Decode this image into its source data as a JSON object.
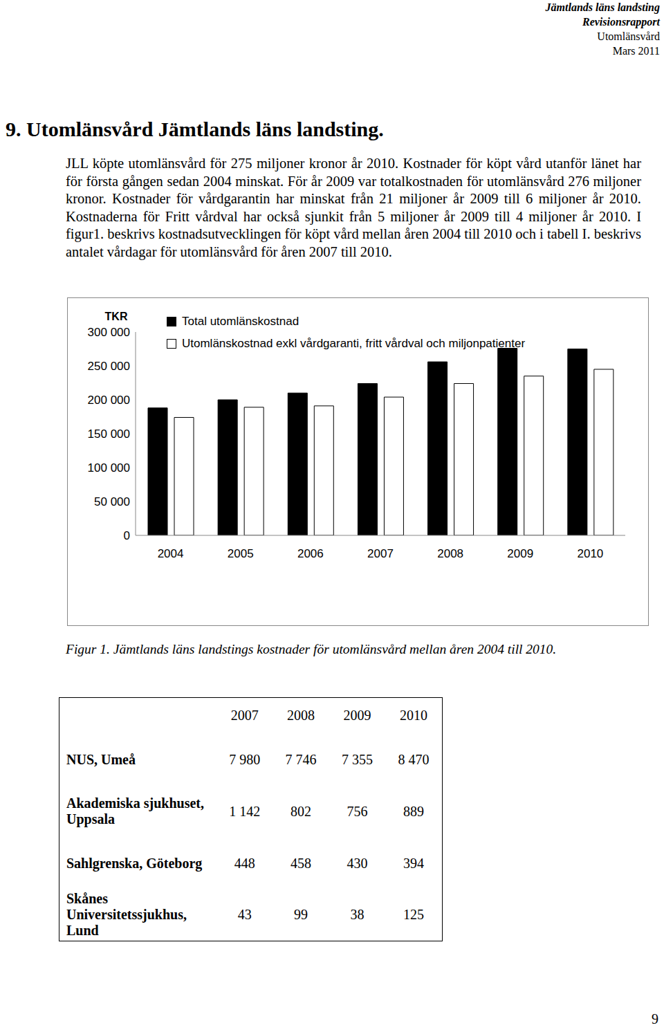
{
  "header": {
    "lines": [
      {
        "text": "Jämtlands läns landsting",
        "bold": true
      },
      {
        "text": "Revisionsrapport",
        "bold": true
      },
      {
        "text": "Utomlänsvård",
        "bold": false
      },
      {
        "text": "Mars 2011",
        "bold": false
      }
    ]
  },
  "section_title": "9. Utomlänsvård Jämtlands läns landsting.",
  "body": "JLL köpte utomlänsvård för 275 miljoner kronor år 2010. Kostnader för köpt vård utanför länet har för första gången sedan 2004 minskat. För år 2009 var totalkostnaden för utomlänsvård 276 miljoner kronor. Kostnader för vårdgarantin har minskat från 21 miljoner år 2009 till 6 miljoner år 2010. Kostnaderna för Fritt vårdval har också sjunkit från 5 miljoner år 2009 till 4 miljoner år 2010. I figur1. beskrivs kostnadsutvecklingen för köpt vård mellan åren 2004 till 2010 och i tabell I. beskrivs antalet vårdagar för utomlänsvård för åren 2007 till 2010.",
  "chart_data": {
    "type": "bar",
    "y_label": "TKR",
    "categories": [
      "2004",
      "2005",
      "2006",
      "2007",
      "2008",
      "2009",
      "2010"
    ],
    "series": [
      {
        "name": "Total utomlänskostnad",
        "color": "#000000",
        "values": [
          188000,
          200000,
          210000,
          224000,
          256000,
          276000,
          275000
        ]
      },
      {
        "name": "Utomlänskostnad exkl vårdgaranti, fritt vårdval och miljonpatienter",
        "color": "#ffffff",
        "values": [
          174000,
          189000,
          191000,
          204000,
          224000,
          235000,
          245000
        ]
      }
    ],
    "ylim": [
      0,
      300000
    ],
    "yticks": [
      0,
      {
        "value": 50000,
        "label": "50 000"
      },
      {
        "value": 100000,
        "label": "100 000"
      },
      {
        "value": 150000,
        "label": "150 000"
      },
      {
        "value": 200000,
        "label": "200 000"
      },
      {
        "value": 250000,
        "label": "250 000"
      },
      {
        "value": 300000,
        "label": "300 000"
      }
    ],
    "grid": false,
    "legend": "top"
  },
  "caption": "Figur 1. Jämtlands läns landstings kostnader för utomlänsvård mellan åren 2004 till 2010.",
  "table": {
    "columns": [
      "2007",
      "2008",
      "2009",
      "2010"
    ],
    "rows": [
      {
        "name": "NUS, Umeå",
        "values": [
          "7 980",
          "7 746",
          "7 355",
          "8 470"
        ]
      },
      {
        "name": "Akademiska sjukhuset, Uppsala",
        "values": [
          "1 142",
          "802",
          "756",
          "889"
        ]
      },
      {
        "name": "Sahlgrenska, Göteborg",
        "values": [
          "448",
          "458",
          "430",
          "394"
        ]
      },
      {
        "name": "Skånes Universitetssjukhus, Lund",
        "values": [
          "43",
          "99",
          "38",
          "125"
        ]
      }
    ]
  },
  "page_number": "9"
}
